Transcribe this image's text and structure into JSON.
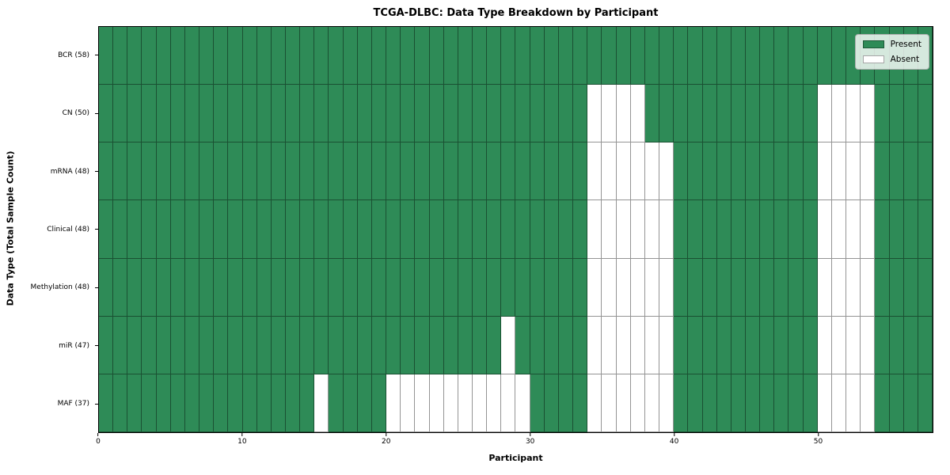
{
  "chart_data": {
    "type": "heatmap",
    "title": "TCGA-DLBC: Data Type Breakdown by Participant",
    "xlabel": "Participant",
    "ylabel": "Data Type (Total Sample Count)",
    "n_participants": 58,
    "x_axis_range": [
      0,
      58
    ],
    "x_ticks": [
      0,
      10,
      20,
      30,
      40,
      50
    ],
    "grid": "cell borders on",
    "legend_position": "upper right",
    "legend": [
      {
        "label": "Present",
        "color": "#2e8b57"
      },
      {
        "label": "Absent",
        "color": "#ffffff"
      }
    ],
    "colors": {
      "present": "#2e8b57",
      "absent": "#ffffff"
    },
    "rows": [
      {
        "label": "BCR (58)",
        "data_type": "BCR",
        "total_samples": 58,
        "absent_participants": []
      },
      {
        "label": "CN (50)",
        "data_type": "CN",
        "total_samples": 50,
        "absent_participants": [
          34,
          35,
          36,
          37,
          50,
          51,
          52,
          53
        ]
      },
      {
        "label": "mRNA (48)",
        "data_type": "mRNA",
        "total_samples": 48,
        "absent_participants": [
          34,
          35,
          36,
          37,
          38,
          39,
          50,
          51,
          52,
          53
        ]
      },
      {
        "label": "Clinical (48)",
        "data_type": "Clinical",
        "total_samples": 48,
        "absent_participants": [
          34,
          35,
          36,
          37,
          38,
          39,
          50,
          51,
          52,
          53
        ]
      },
      {
        "label": "Methylation (48)",
        "data_type": "Methylation",
        "total_samples": 48,
        "absent_participants": [
          34,
          35,
          36,
          37,
          38,
          39,
          50,
          51,
          52,
          53
        ]
      },
      {
        "label": "miR (47)",
        "data_type": "miR",
        "total_samples": 47,
        "absent_participants": [
          28,
          34,
          35,
          36,
          37,
          38,
          39,
          50,
          51,
          52,
          53
        ]
      },
      {
        "label": "MAF (37)",
        "data_type": "MAF",
        "total_samples": 37,
        "absent_participants": [
          15,
          20,
          21,
          22,
          23,
          24,
          25,
          26,
          27,
          28,
          29,
          34,
          35,
          36,
          37,
          38,
          39,
          50,
          51,
          52,
          53
        ]
      }
    ]
  }
}
